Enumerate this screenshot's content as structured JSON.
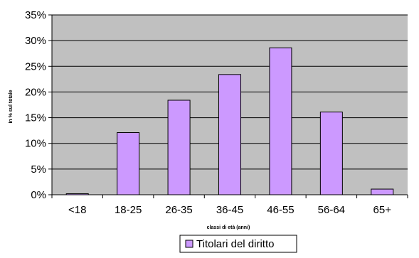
{
  "chart_data": {
    "type": "bar",
    "title": "",
    "xlabel": "classi di età (anni)",
    "ylabel": "in % sul totale",
    "categories": [
      "<18",
      "18-25",
      "26-35",
      "36-45",
      "46-55",
      "56-64",
      "65+"
    ],
    "series": [
      {
        "name": "Titolari del diritto",
        "values": [
          0.2,
          12.1,
          18.4,
          23.4,
          28.6,
          16.1,
          1.1
        ]
      }
    ],
    "ylim": [
      0,
      35
    ],
    "yticks": [
      "0%",
      "5%",
      "10%",
      "15%",
      "20%",
      "25%",
      "30%",
      "35%"
    ],
    "ytick_values": [
      0,
      5,
      10,
      15,
      20,
      25,
      30,
      35
    ],
    "grid": true,
    "legend_position": "bottom",
    "colors": {
      "plot_background": "#c0c0c0",
      "bar_fill": "#cc99ff",
      "bar_stroke": "#000000",
      "grid_line": "#000000"
    }
  }
}
